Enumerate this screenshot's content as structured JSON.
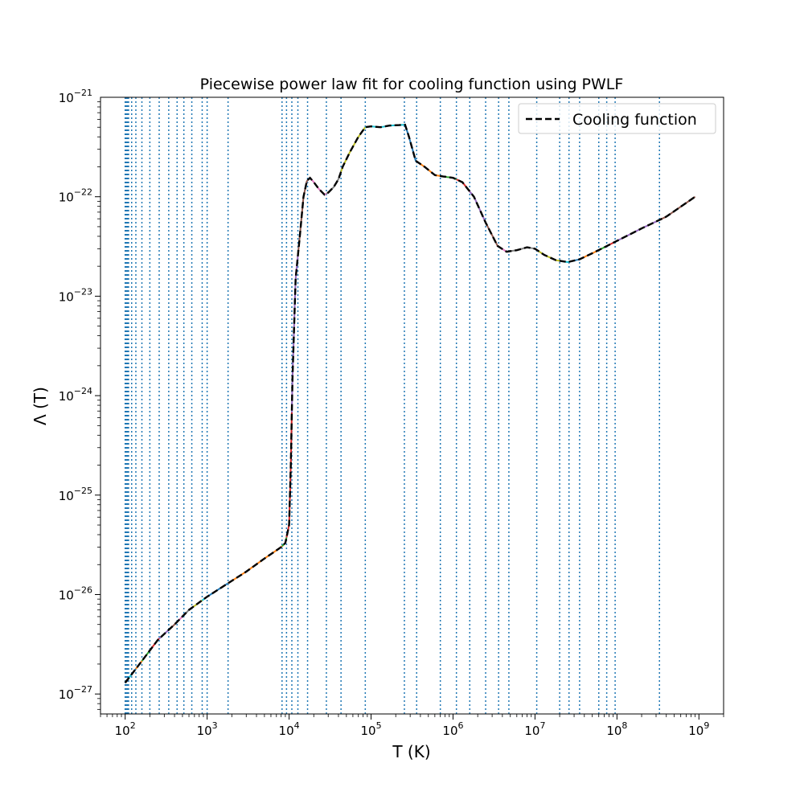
{
  "chart_data": {
    "type": "line",
    "title": "Piecewise power law fit for cooling function using PWLF",
    "xlabel": "T (K)",
    "ylabel": "Λ (T)",
    "xscale": "log",
    "yscale": "log",
    "xlim": [
      50,
      2000000000
    ],
    "ylim": [
      6.3e-28,
      1e-21
    ],
    "x_ticks": [
      {
        "base": "10",
        "exp": "2",
        "value": 100
      },
      {
        "base": "10",
        "exp": "3",
        "value": 1000
      },
      {
        "base": "10",
        "exp": "4",
        "value": 10000
      },
      {
        "base": "10",
        "exp": "5",
        "value": 100000
      },
      {
        "base": "10",
        "exp": "6",
        "value": 1000000
      },
      {
        "base": "10",
        "exp": "7",
        "value": 10000000
      },
      {
        "base": "10",
        "exp": "8",
        "value": 100000000
      },
      {
        "base": "10",
        "exp": "9",
        "value": 1000000000
      }
    ],
    "y_ticks": [
      {
        "base": "10",
        "exp": "−27",
        "value": 1e-27
      },
      {
        "base": "10",
        "exp": "−26",
        "value": 1e-26
      },
      {
        "base": "10",
        "exp": "−25",
        "value": 1e-25
      },
      {
        "base": "10",
        "exp": "−24",
        "value": 1e-24
      },
      {
        "base": "10",
        "exp": "−23",
        "value": 1e-23
      },
      {
        "base": "10",
        "exp": "−22",
        "value": 1e-22
      },
      {
        "base": "10",
        "exp": "−21",
        "value": 1e-21
      }
    ],
    "legend": {
      "position": "top-right",
      "entries": [
        {
          "label": "Cooling function",
          "style": "dashed",
          "color": "#000000"
        }
      ]
    },
    "cooling_function": {
      "x": [
        100,
        150,
        250,
        400,
        600,
        1000,
        1800,
        3000,
        5000,
        8000,
        9000,
        10000,
        10500,
        11000,
        12000,
        13500,
        15000,
        16500,
        18000,
        20000,
        23000,
        27000,
        30000,
        35000,
        40000,
        45000,
        55000,
        70000,
        85000,
        100000,
        130000,
        170000,
        220000,
        260000,
        290000,
        350000,
        450000,
        600000,
        750000,
        1000000,
        1300000,
        1800000,
        2500000,
        3500000,
        4500000,
        6000000,
        8000000,
        10000000,
        13000000,
        18000000,
        25000000,
        35000000,
        50000000,
        70000000,
        100000000,
        200000000,
        400000000,
        900000000
      ],
      "y": [
        1.3e-27,
        2e-27,
        3.5e-27,
        5e-27,
        7e-27,
        9.5e-27,
        1.3e-26,
        1.7e-26,
        2.3e-26,
        3e-26,
        3.3e-26,
        5e-26,
        2e-25,
        1.5e-24,
        1.5e-23,
        4e-23,
        1e-22,
        1.45e-22,
        1.55e-22,
        1.4e-22,
        1.2e-22,
        1.05e-22,
        1.1e-22,
        1.25e-22,
        1.5e-22,
        2e-22,
        2.8e-22,
        4e-22,
        5e-22,
        5.1e-22,
        5e-22,
        5.2e-22,
        5.25e-22,
        5.3e-22,
        4e-22,
        2.3e-22,
        2e-22,
        1.65e-22,
        1.6e-22,
        1.55e-22,
        1.4e-22,
        1e-22,
        5.5e-23,
        3.2e-23,
        2.8e-23,
        2.9e-23,
        3.1e-23,
        3e-23,
        2.6e-23,
        2.3e-23,
        2.2e-23,
        2.35e-23,
        2.7e-23,
        3.1e-23,
        3.6e-23,
        4.8e-23,
        6.3e-23,
        1e-22
      ]
    },
    "fit_segment_colors": [
      "#1f77b4",
      "#ff7f0e",
      "#2ca02c",
      "#d62728",
      "#9467bd",
      "#8c564b",
      "#e377c2",
      "#7f7f7f",
      "#bcbd22",
      "#17becf"
    ],
    "breakpoints": [
      100,
      101,
      102,
      103,
      104,
      105,
      106,
      107,
      108,
      110,
      120,
      135,
      160,
      200,
      260,
      340,
      430,
      520,
      650,
      870,
      1000,
      1800,
      8200,
      9300,
      10800,
      12800,
      16800,
      28500,
      43000,
      85000,
      255000,
      360000,
      700000,
      1100000,
      1600000,
      2500000,
      3600000,
      4800000,
      10500000,
      20000000,
      26000000,
      35000000,
      60000000,
      75000000,
      95000000,
      330000000
    ],
    "breakpoint_line_color": "#1f77b4"
  }
}
